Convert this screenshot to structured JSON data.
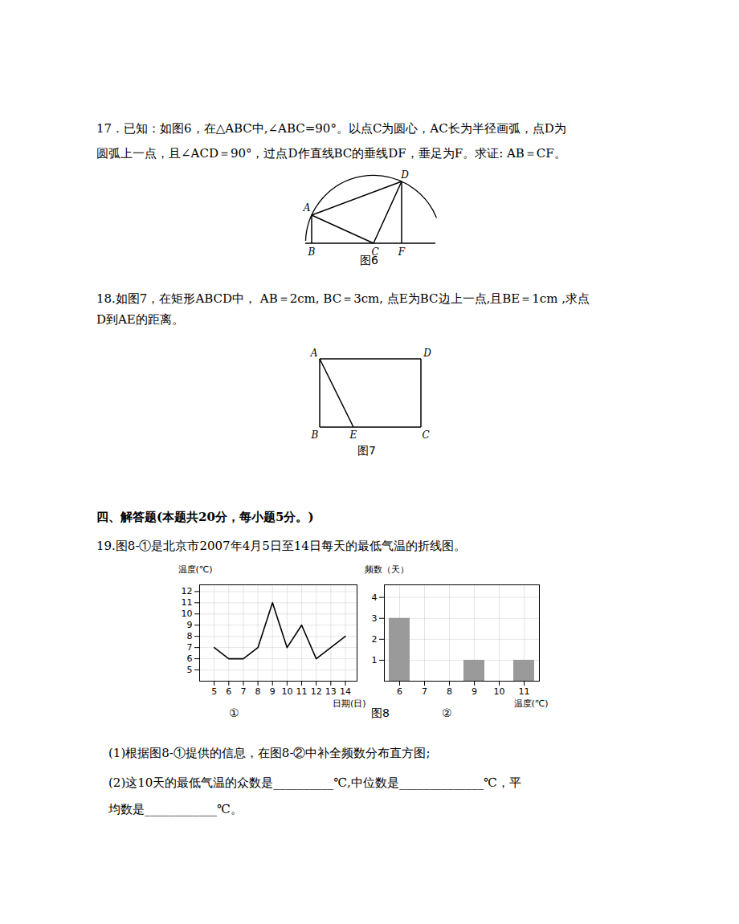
{
  "document": {
    "q17": {
      "lines": [
        "17．已知：如图6，在△ABC中,∠ABC=90°。以点C为圆心，AC长为半径画弧，点D为",
        "圆弧上一点，且∠ACD＝90°，过点D作直线BC的垂线DF，垂足为F。求证: AB＝CF。"
      ],
      "figure": {
        "points": [
          "A",
          "B",
          "C",
          "D",
          "F"
        ],
        "caption": "图6"
      }
    },
    "q18": {
      "lines": [
        "18.如图7，在矩形ABCD中， AB＝2cm, BC＝3cm, 点E为BC边上一点,且BE＝1cm ,求点",
        "D到AE的距离。"
      ],
      "figure": {
        "points": [
          "A",
          "D",
          "B",
          "E",
          "C"
        ],
        "caption": "图7"
      }
    },
    "section": "四、解答题(本题共20分，每小题5分。)",
    "q19": {
      "lines": [
        "19.图8-①是北京市2007年4月5日至14日每天的最低气温的折线图。"
      ],
      "figure_caption": "图8",
      "parts": [
        [
          "(1)根据图8-①提供的信息，在图8-②中补全频数分布直方图;"
        ],
        [
          "(2)这10天的最低气温的众数是__________℃,中位数是______________℃，平",
          "均数是____________℃。"
        ]
      ]
    }
  },
  "chart_data": [
    {
      "type": "line",
      "caption": "①",
      "x_label": "日期(日)",
      "y_label": "温度(℃)",
      "x": [
        5,
        6,
        7,
        8,
        9,
        10,
        11,
        12,
        13,
        14
      ],
      "values": [
        7,
        6,
        6,
        7,
        11,
        7,
        9,
        6,
        7,
        8
      ],
      "xlim": [
        4,
        14.8
      ],
      "xticks": [
        5,
        6,
        7,
        8,
        9,
        10,
        11,
        12,
        13,
        14
      ],
      "ylim": [
        4,
        12.6
      ],
      "yticks": [
        5,
        6,
        7,
        8,
        9,
        10,
        11,
        12
      ],
      "grid": true,
      "color": "#000000"
    },
    {
      "type": "bar",
      "caption": "②",
      "x_label": "温度(℃)",
      "y_label": "频数（天）",
      "categories": [
        "6",
        "7",
        "8",
        "9",
        "10",
        "11"
      ],
      "values": [
        3,
        0,
        0,
        1,
        0,
        1
      ],
      "ylim": [
        0,
        4.6
      ],
      "yticks": [
        1,
        2,
        3,
        4
      ],
      "grid": true,
      "color": "#9a9a9a"
    }
  ]
}
